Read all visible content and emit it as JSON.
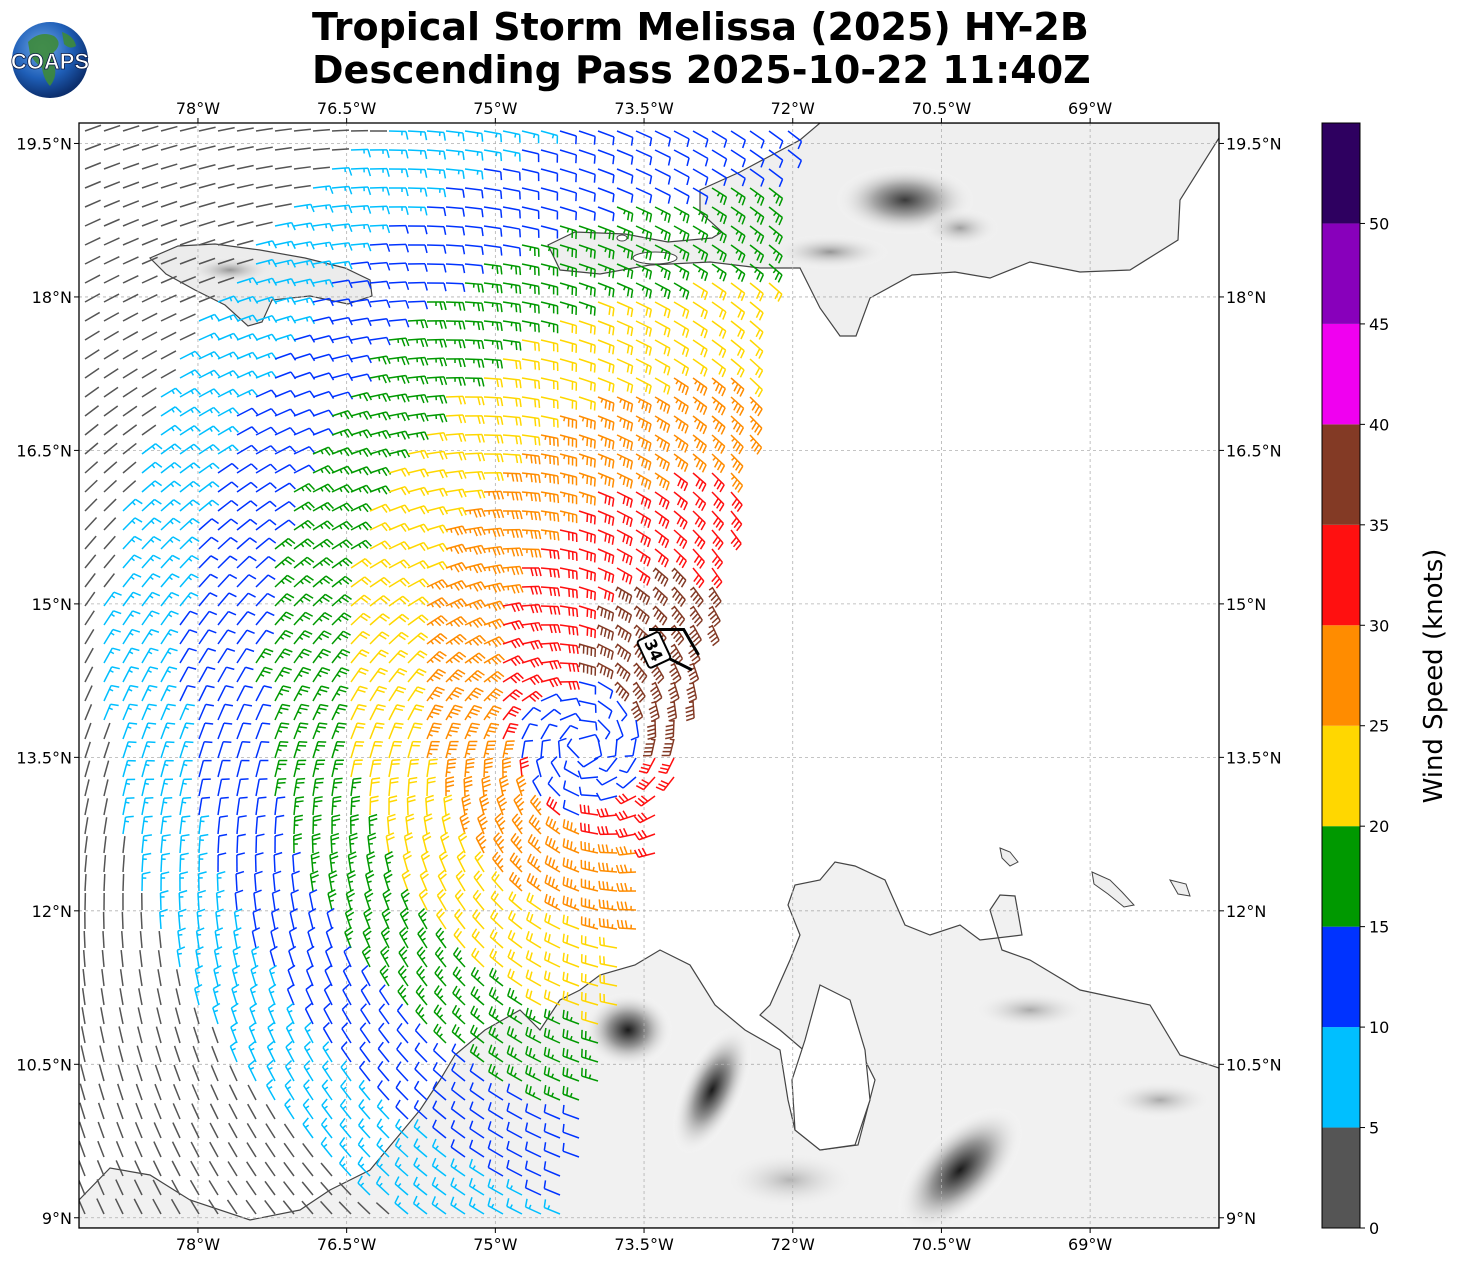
{
  "header": {
    "title_line1": "Tropical Storm Melissa (2025) HY-2B",
    "title_line2": "Descending Pass 2025-10-22 11:40Z",
    "logo_text": "COAPS"
  },
  "map": {
    "lon_range": [
      -79.2,
      -67.7
    ],
    "lat_range": [
      8.9,
      19.7
    ],
    "lon_ticks": [
      {
        "value": -78.0,
        "label": "78°W"
      },
      {
        "value": -76.5,
        "label": "76.5°W"
      },
      {
        "value": -75.0,
        "label": "75°W"
      },
      {
        "value": -73.5,
        "label": "73.5°W"
      },
      {
        "value": -72.0,
        "label": "72°W"
      },
      {
        "value": -70.5,
        "label": "70.5°W"
      },
      {
        "value": -69.0,
        "label": "69°W"
      }
    ],
    "lat_ticks": [
      {
        "value": 19.5,
        "label": "19.5°N"
      },
      {
        "value": 18.0,
        "label": "18°N"
      },
      {
        "value": 16.5,
        "label": "16.5°N"
      },
      {
        "value": 15.0,
        "label": "15°N"
      },
      {
        "value": 13.5,
        "label": "13.5°N"
      },
      {
        "value": 12.0,
        "label": "12°N"
      },
      {
        "value": 10.5,
        "label": "10.5°N"
      },
      {
        "value": 9.0,
        "label": "9°N"
      }
    ],
    "grid": true,
    "storm_center": {
      "lon": -73.4,
      "lat": 14.55
    },
    "storm_label": "34",
    "storm_track": [
      {
        "lon": -73.45,
        "lat": 14.75
      },
      {
        "lon": -73.1,
        "lat": 14.75
      },
      {
        "lon": -72.95,
        "lat": 14.5
      }
    ],
    "circulation_center": {
      "lon": -74.1,
      "lat": 13.6
    },
    "swath_lon_limits": [
      -79.2,
      -72.3
    ],
    "wind_barbs_count_estimate": 1500
  },
  "colorbar": {
    "label": "Wind Speed (knots)",
    "ticks": [
      "0",
      "5",
      "10",
      "15",
      "20",
      "25",
      "30",
      "35",
      "40",
      "45",
      "50"
    ],
    "bins": [
      {
        "min": 0,
        "max": 5,
        "color": "#555555"
      },
      {
        "min": 5,
        "max": 10,
        "color": "#00bfff"
      },
      {
        "min": 10,
        "max": 15,
        "color": "#0033ff"
      },
      {
        "min": 15,
        "max": 20,
        "color": "#009900"
      },
      {
        "min": 20,
        "max": 25,
        "color": "#ffd700"
      },
      {
        "min": 25,
        "max": 30,
        "color": "#ff8c00"
      },
      {
        "min": 30,
        "max": 35,
        "color": "#ff1010"
      },
      {
        "min": 35,
        "max": 40,
        "color": "#833a25"
      },
      {
        "min": 40,
        "max": 45,
        "color": "#f000f0"
      },
      {
        "min": 45,
        "max": 50,
        "color": "#8800bb"
      },
      {
        "min": 50,
        "max": 55,
        "color": "#2e0060"
      }
    ]
  }
}
